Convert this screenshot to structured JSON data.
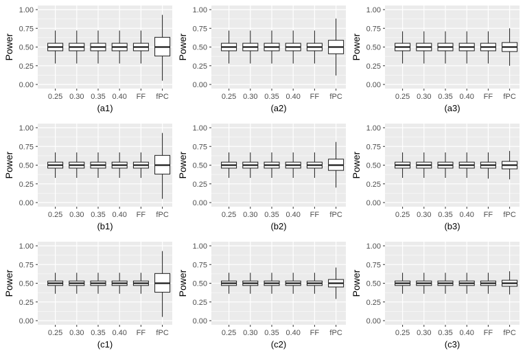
{
  "chart_data": [
    {
      "id": "a1",
      "type": "boxplot",
      "label": "(a1)",
      "ylabel": "Power",
      "ylim": [
        0,
        1
      ],
      "yticks": [
        "0.00",
        "0.25",
        "0.50",
        "0.75",
        "1.00"
      ],
      "categories": [
        "0.25",
        "0.30",
        "0.35",
        "0.40",
        "FF",
        "fPC"
      ],
      "boxes": [
        {
          "min": 0.28,
          "q1": 0.45,
          "median": 0.5,
          "q3": 0.55,
          "max": 0.72
        },
        {
          "min": 0.28,
          "q1": 0.45,
          "median": 0.5,
          "q3": 0.55,
          "max": 0.72
        },
        {
          "min": 0.28,
          "q1": 0.45,
          "median": 0.5,
          "q3": 0.55,
          "max": 0.72
        },
        {
          "min": 0.28,
          "q1": 0.45,
          "median": 0.5,
          "q3": 0.55,
          "max": 0.72
        },
        {
          "min": 0.28,
          "q1": 0.45,
          "median": 0.5,
          "q3": 0.55,
          "max": 0.72
        },
        {
          "min": 0.05,
          "q1": 0.38,
          "median": 0.5,
          "q3": 0.63,
          "max": 0.93
        }
      ]
    },
    {
      "id": "a2",
      "type": "boxplot",
      "label": "(a2)",
      "ylabel": "Power",
      "ylim": [
        0,
        1
      ],
      "yticks": [
        "0.00",
        "0.25",
        "0.50",
        "0.75",
        "1.00"
      ],
      "categories": [
        "0.25",
        "0.30",
        "0.35",
        "0.40",
        "FF",
        "fPC"
      ],
      "boxes": [
        {
          "min": 0.28,
          "q1": 0.45,
          "median": 0.5,
          "q3": 0.55,
          "max": 0.72
        },
        {
          "min": 0.28,
          "q1": 0.45,
          "median": 0.5,
          "q3": 0.55,
          "max": 0.72
        },
        {
          "min": 0.28,
          "q1": 0.45,
          "median": 0.5,
          "q3": 0.55,
          "max": 0.72
        },
        {
          "min": 0.28,
          "q1": 0.45,
          "median": 0.5,
          "q3": 0.55,
          "max": 0.72
        },
        {
          "min": 0.28,
          "q1": 0.45,
          "median": 0.5,
          "q3": 0.55,
          "max": 0.72
        },
        {
          "min": 0.12,
          "q1": 0.41,
          "median": 0.5,
          "q3": 0.59,
          "max": 0.88
        }
      ]
    },
    {
      "id": "a3",
      "type": "boxplot",
      "label": "(a3)",
      "ylabel": "Power",
      "ylim": [
        0,
        1
      ],
      "yticks": [
        "0.00",
        "0.25",
        "0.50",
        "0.75",
        "1.00"
      ],
      "categories": [
        "0.25",
        "0.30",
        "0.35",
        "0.40",
        "FF",
        "fPC"
      ],
      "boxes": [
        {
          "min": 0.28,
          "q1": 0.45,
          "median": 0.5,
          "q3": 0.55,
          "max": 0.71
        },
        {
          "min": 0.28,
          "q1": 0.45,
          "median": 0.5,
          "q3": 0.55,
          "max": 0.71
        },
        {
          "min": 0.28,
          "q1": 0.45,
          "median": 0.5,
          "q3": 0.55,
          "max": 0.71
        },
        {
          "min": 0.28,
          "q1": 0.45,
          "median": 0.5,
          "q3": 0.55,
          "max": 0.71
        },
        {
          "min": 0.28,
          "q1": 0.45,
          "median": 0.5,
          "q3": 0.55,
          "max": 0.71
        },
        {
          "min": 0.25,
          "q1": 0.44,
          "median": 0.5,
          "q3": 0.56,
          "max": 0.75
        }
      ]
    },
    {
      "id": "b1",
      "type": "boxplot",
      "label": "(b1)",
      "ylabel": "Power",
      "ylim": [
        0,
        1
      ],
      "yticks": [
        "0.00",
        "0.25",
        "0.50",
        "0.75",
        "1.00"
      ],
      "categories": [
        "0.25",
        "0.30",
        "0.35",
        "0.40",
        "FF",
        "fPC"
      ],
      "boxes": [
        {
          "min": 0.33,
          "q1": 0.46,
          "median": 0.5,
          "q3": 0.54,
          "max": 0.67
        },
        {
          "min": 0.33,
          "q1": 0.46,
          "median": 0.5,
          "q3": 0.54,
          "max": 0.67
        },
        {
          "min": 0.33,
          "q1": 0.46,
          "median": 0.5,
          "q3": 0.54,
          "max": 0.67
        },
        {
          "min": 0.33,
          "q1": 0.46,
          "median": 0.5,
          "q3": 0.54,
          "max": 0.67
        },
        {
          "min": 0.33,
          "q1": 0.46,
          "median": 0.5,
          "q3": 0.54,
          "max": 0.67
        },
        {
          "min": 0.05,
          "q1": 0.38,
          "median": 0.5,
          "q3": 0.63,
          "max": 0.93
        }
      ]
    },
    {
      "id": "b2",
      "type": "boxplot",
      "label": "(b2)",
      "ylabel": "Power",
      "ylim": [
        0,
        1
      ],
      "yticks": [
        "0.00",
        "0.25",
        "0.50",
        "0.75",
        "1.00"
      ],
      "categories": [
        "0.25",
        "0.30",
        "0.35",
        "0.40",
        "FF",
        "fPC"
      ],
      "boxes": [
        {
          "min": 0.33,
          "q1": 0.46,
          "median": 0.5,
          "q3": 0.54,
          "max": 0.67
        },
        {
          "min": 0.33,
          "q1": 0.46,
          "median": 0.5,
          "q3": 0.54,
          "max": 0.67
        },
        {
          "min": 0.33,
          "q1": 0.46,
          "median": 0.5,
          "q3": 0.54,
          "max": 0.67
        },
        {
          "min": 0.33,
          "q1": 0.46,
          "median": 0.5,
          "q3": 0.54,
          "max": 0.67
        },
        {
          "min": 0.33,
          "q1": 0.46,
          "median": 0.5,
          "q3": 0.54,
          "max": 0.67
        },
        {
          "min": 0.2,
          "q1": 0.43,
          "median": 0.5,
          "q3": 0.58,
          "max": 0.81
        }
      ]
    },
    {
      "id": "b3",
      "type": "boxplot",
      "label": "(b3)",
      "ylabel": "Power",
      "ylim": [
        0,
        1
      ],
      "yticks": [
        "0.00",
        "0.25",
        "0.50",
        "0.75",
        "1.00"
      ],
      "categories": [
        "0.25",
        "0.30",
        "0.35",
        "0.40",
        "FF",
        "fPC"
      ],
      "boxes": [
        {
          "min": 0.33,
          "q1": 0.46,
          "median": 0.5,
          "q3": 0.54,
          "max": 0.67
        },
        {
          "min": 0.33,
          "q1": 0.46,
          "median": 0.5,
          "q3": 0.54,
          "max": 0.67
        },
        {
          "min": 0.33,
          "q1": 0.46,
          "median": 0.5,
          "q3": 0.54,
          "max": 0.67
        },
        {
          "min": 0.33,
          "q1": 0.46,
          "median": 0.5,
          "q3": 0.54,
          "max": 0.67
        },
        {
          "min": 0.32,
          "q1": 0.46,
          "median": 0.5,
          "q3": 0.54,
          "max": 0.67
        },
        {
          "min": 0.31,
          "q1": 0.45,
          "median": 0.5,
          "q3": 0.55,
          "max": 0.69
        }
      ]
    },
    {
      "id": "c1",
      "type": "boxplot",
      "label": "(c1)",
      "ylabel": "Power",
      "ylim": [
        0,
        1
      ],
      "yticks": [
        "0.00",
        "0.25",
        "0.50",
        "0.75",
        "1.00"
      ],
      "categories": [
        "0.25",
        "0.30",
        "0.35",
        "0.40",
        "FF",
        "fPC"
      ],
      "boxes": [
        {
          "min": 0.36,
          "q1": 0.47,
          "median": 0.5,
          "q3": 0.53,
          "max": 0.64
        },
        {
          "min": 0.36,
          "q1": 0.47,
          "median": 0.5,
          "q3": 0.53,
          "max": 0.64
        },
        {
          "min": 0.36,
          "q1": 0.47,
          "median": 0.5,
          "q3": 0.53,
          "max": 0.64
        },
        {
          "min": 0.36,
          "q1": 0.47,
          "median": 0.5,
          "q3": 0.53,
          "max": 0.64
        },
        {
          "min": 0.36,
          "q1": 0.47,
          "median": 0.5,
          "q3": 0.53,
          "max": 0.64
        },
        {
          "min": 0.05,
          "q1": 0.38,
          "median": 0.5,
          "q3": 0.63,
          "max": 0.93
        }
      ]
    },
    {
      "id": "c2",
      "type": "boxplot",
      "label": "(c2)",
      "ylabel": "Power",
      "ylim": [
        0,
        1
      ],
      "yticks": [
        "0.00",
        "0.25",
        "0.50",
        "0.75",
        "1.00"
      ],
      "categories": [
        "0.25",
        "0.30",
        "0.35",
        "0.40",
        "FF",
        "fPC"
      ],
      "boxes": [
        {
          "min": 0.36,
          "q1": 0.47,
          "median": 0.5,
          "q3": 0.53,
          "max": 0.64
        },
        {
          "min": 0.36,
          "q1": 0.47,
          "median": 0.5,
          "q3": 0.53,
          "max": 0.64
        },
        {
          "min": 0.36,
          "q1": 0.47,
          "median": 0.5,
          "q3": 0.53,
          "max": 0.64
        },
        {
          "min": 0.36,
          "q1": 0.47,
          "median": 0.5,
          "q3": 0.53,
          "max": 0.64
        },
        {
          "min": 0.36,
          "q1": 0.47,
          "median": 0.5,
          "q3": 0.53,
          "max": 0.64
        },
        {
          "min": 0.29,
          "q1": 0.45,
          "median": 0.5,
          "q3": 0.55,
          "max": 0.71
        }
      ]
    },
    {
      "id": "c3",
      "type": "boxplot",
      "label": "(c3)",
      "ylabel": "Power",
      "ylim": [
        0,
        1
      ],
      "yticks": [
        "0.00",
        "0.25",
        "0.50",
        "0.75",
        "1.00"
      ],
      "categories": [
        "0.25",
        "0.30",
        "0.35",
        "0.40",
        "FF",
        "fPC"
      ],
      "boxes": [
        {
          "min": 0.36,
          "q1": 0.47,
          "median": 0.5,
          "q3": 0.53,
          "max": 0.64
        },
        {
          "min": 0.36,
          "q1": 0.47,
          "median": 0.5,
          "q3": 0.53,
          "max": 0.64
        },
        {
          "min": 0.36,
          "q1": 0.47,
          "median": 0.5,
          "q3": 0.53,
          "max": 0.64
        },
        {
          "min": 0.36,
          "q1": 0.47,
          "median": 0.5,
          "q3": 0.53,
          "max": 0.64
        },
        {
          "min": 0.36,
          "q1": 0.47,
          "median": 0.5,
          "q3": 0.53,
          "max": 0.64
        },
        {
          "min": 0.35,
          "q1": 0.46,
          "median": 0.5,
          "q3": 0.54,
          "max": 0.66
        }
      ]
    }
  ],
  "colors": {
    "panel_bg": "#ebebeb",
    "grid": "#ffffff",
    "box_fill": "#ffffff",
    "box_line": "#1a1a1a",
    "tick_text": "#4d4d4d",
    "label_text": "#000000"
  }
}
